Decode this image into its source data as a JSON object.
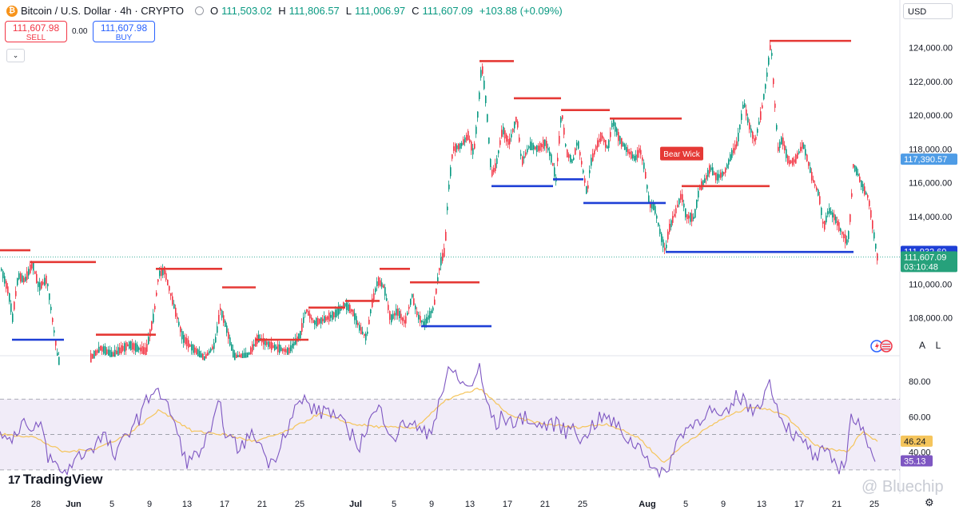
{
  "header": {
    "symbol": "Bitcoin / U.S. Dollar · 4h · CRYPTO",
    "o_label": "O",
    "o": "111,503.02",
    "h_label": "H",
    "h": "111,806.57",
    "l_label": "L",
    "l": "111,006.97",
    "c_label": "C",
    "c": "111,607.09",
    "change": "+103.88 (+0.09%)"
  },
  "trade": {
    "sell_price": "111,607.98",
    "sell_label": "SELL",
    "spread": "0.00",
    "buy_price": "111,607.98",
    "buy_label": "BUY"
  },
  "currency": "USD",
  "axis_buttons": {
    "auto": "A",
    "log": "L"
  },
  "branding": "TradingView",
  "watermark": "@ Bluechip",
  "colors": {
    "up": "#089981",
    "down": "#f23645",
    "resistance": "#e53935",
    "support": "#1e3fd6",
    "rsi": "#7e57c2",
    "rsi_ma": "#f5c55c",
    "rsi_band": "#ede7f6"
  },
  "chart_data": [
    {
      "type": "candlestick",
      "title": "Bitcoin / U.S. Dollar · 4h · CRYPTO",
      "x_ticks": [
        "28",
        "Jun",
        "5",
        "9",
        "13",
        "17",
        "21",
        "25",
        "Jul",
        "5",
        "9",
        "13",
        "17",
        "21",
        "25",
        "Aug",
        "5",
        "9",
        "13",
        "17",
        "21",
        "25"
      ],
      "y_ticks": [
        "108,000.00",
        "110,000.00",
        "112,000.00",
        "114,000.00",
        "116,000.00",
        "118,000.00",
        "120,000.00",
        "122,000.00",
        "124,000.00"
      ],
      "ylim": [
        105800,
        125400
      ],
      "path": [
        [
          0,
          111000
        ],
        [
          10,
          109500
        ],
        [
          15,
          108000
        ],
        [
          22,
          110500
        ],
        [
          30,
          110200
        ],
        [
          40,
          111200
        ],
        [
          48,
          109800
        ],
        [
          58,
          110300
        ],
        [
          64,
          108200
        ],
        [
          72,
          105500
        ],
        [
          90,
          104500
        ],
        [
          125,
          106200
        ],
        [
          140,
          105800
        ],
        [
          160,
          106400
        ],
        [
          182,
          106000
        ],
        [
          192,
          108200
        ],
        [
          198,
          110600
        ],
        [
          205,
          110800
        ],
        [
          218,
          108500
        ],
        [
          228,
          106800
        ],
        [
          240,
          106200
        ],
        [
          255,
          105600
        ],
        [
          268,
          106400
        ],
        [
          275,
          108500
        ],
        [
          282,
          107500
        ],
        [
          292,
          105700
        ],
        [
          310,
          105800
        ],
        [
          322,
          106800
        ],
        [
          340,
          106300
        ],
        [
          360,
          106000
        ],
        [
          375,
          107000
        ],
        [
          382,
          108500
        ],
        [
          392,
          107700
        ],
        [
          405,
          107900
        ],
        [
          418,
          108200
        ],
        [
          430,
          108800
        ],
        [
          440,
          108400
        ],
        [
          450,
          107300
        ],
        [
          458,
          106800
        ],
        [
          464,
          108700
        ],
        [
          472,
          110200
        ],
        [
          480,
          109800
        ],
        [
          488,
          107900
        ],
        [
          496,
          108400
        ],
        [
          506,
          107700
        ],
        [
          515,
          109300
        ],
        [
          522,
          108100
        ],
        [
          530,
          107600
        ],
        [
          542,
          108600
        ],
        [
          550,
          111200
        ],
        [
          556,
          112000
        ],
        [
          560,
          115300
        ],
        [
          566,
          118000
        ],
        [
          576,
          118200
        ],
        [
          585,
          118800
        ],
        [
          592,
          117700
        ],
        [
          598,
          120500
        ],
        [
          602,
          123100
        ],
        [
          608,
          120500
        ],
        [
          614,
          116500
        ],
        [
          620,
          117000
        ],
        [
          628,
          119200
        ],
        [
          636,
          118300
        ],
        [
          646,
          119900
        ],
        [
          652,
          117200
        ],
        [
          662,
          118200
        ],
        [
          672,
          118000
        ],
        [
          682,
          118400
        ],
        [
          690,
          117300
        ],
        [
          695,
          116200
        ],
        [
          702,
          120300
        ],
        [
          708,
          117800
        ],
        [
          716,
          117200
        ],
        [
          722,
          118500
        ],
        [
          730,
          116400
        ],
        [
          734,
          115300
        ],
        [
          738,
          117100
        ],
        [
          746,
          118200
        ],
        [
          752,
          118800
        ],
        [
          760,
          118000
        ],
        [
          766,
          119700
        ],
        [
          774,
          118600
        ],
        [
          784,
          117900
        ],
        [
          794,
          117400
        ],
        [
          800,
          118000
        ],
        [
          806,
          116800
        ],
        [
          812,
          114700
        ],
        [
          818,
          114600
        ],
        [
          826,
          112900
        ],
        [
          832,
          111900
        ],
        [
          836,
          113200
        ],
        [
          844,
          114200
        ],
        [
          852,
          115300
        ],
        [
          858,
          114000
        ],
        [
          868,
          113900
        ],
        [
          874,
          115600
        ],
        [
          882,
          116200
        ],
        [
          888,
          116900
        ],
        [
          896,
          116300
        ],
        [
          906,
          116600
        ],
        [
          914,
          117600
        ],
        [
          922,
          118400
        ],
        [
          930,
          120800
        ],
        [
          936,
          119500
        ],
        [
          944,
          118400
        ],
        [
          952,
          120200
        ],
        [
          958,
          122000
        ],
        [
          964,
          124400
        ],
        [
          968,
          121200
        ],
        [
          973,
          118000
        ],
        [
          978,
          118600
        ],
        [
          986,
          117200
        ],
        [
          994,
          117300
        ],
        [
          1004,
          118300
        ],
        [
          1010,
          117300
        ],
        [
          1016,
          116200
        ],
        [
          1024,
          115300
        ],
        [
          1030,
          113300
        ],
        [
          1036,
          114400
        ],
        [
          1044,
          113900
        ],
        [
          1052,
          113100
        ],
        [
          1060,
          112400
        ],
        [
          1064,
          114400
        ],
        [
          1067,
          117000
        ],
        [
          1072,
          116600
        ],
        [
          1078,
          115800
        ],
        [
          1086,
          115100
        ],
        [
          1092,
          113200
        ],
        [
          1097,
          111600
        ]
      ],
      "resistance_levels": [
        {
          "x": [
            0,
            38
          ],
          "y": 112000
        },
        {
          "x": [
            38,
            120
          ],
          "y": 111300
        },
        {
          "x": [
            120,
            195
          ],
          "y": 107000
        },
        {
          "x": [
            195,
            278
          ],
          "y": 110900
        },
        {
          "x": [
            278,
            320
          ],
          "y": 109800
        },
        {
          "x": [
            320,
            386
          ],
          "y": 106700
        },
        {
          "x": [
            386,
            432
          ],
          "y": 108600
        },
        {
          "x": [
            432,
            475
          ],
          "y": 109000
        },
        {
          "x": [
            475,
            513
          ],
          "y": 110900
        },
        {
          "x": [
            513,
            600
          ],
          "y": 110100
        },
        {
          "x": [
            600,
            643
          ],
          "y": 123200
        },
        {
          "x": [
            643,
            702
          ],
          "y": 121000
        },
        {
          "x": [
            702,
            763
          ],
          "y": 120300
        },
        {
          "x": [
            763,
            853
          ],
          "y": 119800
        },
        {
          "x": [
            853,
            963
          ],
          "y": 115800
        },
        {
          "x": [
            963,
            1065
          ],
          "y": 124400
        }
      ],
      "support_levels": [
        {
          "x": [
            15,
            80
          ],
          "y": 106700
        },
        {
          "x": [
            527,
            615
          ],
          "y": 107500
        },
        {
          "x": [
            615,
            692
          ],
          "y": 115800
        },
        {
          "x": [
            692,
            730
          ],
          "y": 116200
        },
        {
          "x": [
            730,
            833
          ],
          "y": 114800
        },
        {
          "x": [
            833,
            1068
          ],
          "y": 111900
        }
      ],
      "last_price": 111607.09,
      "price_labels": [
        {
          "value": 117390.57,
          "text": "117,390.57",
          "color": "#4e9ce6"
        },
        {
          "value": 111932.6,
          "text": "111,932.60",
          "color": "#1e3fd6"
        },
        {
          "value": 111607.09,
          "text": "111,607.09",
          "sub": "03:10:48",
          "color": "#26a17b"
        }
      ],
      "annotations": [
        {
          "text": "Bear Wick",
          "x": 853,
          "y": 117700
        }
      ]
    },
    {
      "type": "line",
      "title": "RSI",
      "ylim": [
        20,
        90
      ],
      "y_ticks": [
        "40.00",
        "60.00",
        "80.00"
      ],
      "band": [
        30,
        70
      ],
      "midline": 50,
      "rsi": [
        [
          0,
          55
        ],
        [
          10,
          45
        ],
        [
          20,
          52
        ],
        [
          30,
          58
        ],
        [
          40,
          48
        ],
        [
          50,
          58
        ],
        [
          60,
          38
        ],
        [
          70,
          32
        ],
        [
          80,
          28
        ],
        [
          92,
          35
        ],
        [
          105,
          40
        ],
        [
          118,
          44
        ],
        [
          130,
          50
        ],
        [
          145,
          36
        ],
        [
          155,
          48
        ],
        [
          165,
          55
        ],
        [
          175,
          60
        ],
        [
          185,
          70
        ],
        [
          195,
          78
        ],
        [
          205,
          68
        ],
        [
          215,
          62
        ],
        [
          225,
          45
        ],
        [
          235,
          34
        ],
        [
          245,
          38
        ],
        [
          255,
          44
        ],
        [
          265,
          52
        ],
        [
          275,
          68
        ],
        [
          283,
          50
        ],
        [
          292,
          45
        ],
        [
          300,
          42
        ],
        [
          310,
          48
        ],
        [
          320,
          50
        ],
        [
          330,
          40
        ],
        [
          340,
          32
        ],
        [
          350,
          45
        ],
        [
          360,
          55
        ],
        [
          370,
          65
        ],
        [
          380,
          70
        ],
        [
          390,
          65
        ],
        [
          400,
          62
        ],
        [
          410,
          65
        ],
        [
          420,
          60
        ],
        [
          430,
          55
        ],
        [
          440,
          50
        ],
        [
          450,
          44
        ],
        [
          460,
          55
        ],
        [
          468,
          62
        ],
        [
          476,
          64
        ],
        [
          484,
          56
        ],
        [
          494,
          48
        ],
        [
          504,
          55
        ],
        [
          514,
          58
        ],
        [
          524,
          52
        ],
        [
          534,
          50
        ],
        [
          544,
          58
        ],
        [
          550,
          72
        ],
        [
          556,
          76
        ],
        [
          560,
          84
        ],
        [
          568,
          86
        ],
        [
          576,
          80
        ],
        [
          584,
          76
        ],
        [
          592,
          80
        ],
        [
          600,
          87
        ],
        [
          606,
          72
        ],
        [
          612,
          66
        ],
        [
          620,
          54
        ],
        [
          628,
          60
        ],
        [
          638,
          58
        ],
        [
          648,
          56
        ],
        [
          658,
          62
        ],
        [
          668,
          54
        ],
        [
          678,
          56
        ],
        [
          688,
          54
        ],
        [
          698,
          58
        ],
        [
          708,
          50
        ],
        [
          718,
          58
        ],
        [
          728,
          44
        ],
        [
          738,
          54
        ],
        [
          748,
          58
        ],
        [
          758,
          60
        ],
        [
          768,
          56
        ],
        [
          778,
          52
        ],
        [
          788,
          46
        ],
        [
          798,
          44
        ],
        [
          808,
          40
        ],
        [
          818,
          30
        ],
        [
          826,
          26
        ],
        [
          834,
          30
        ],
        [
          844,
          42
        ],
        [
          854,
          52
        ],
        [
          864,
          55
        ],
        [
          874,
          58
        ],
        [
          884,
          64
        ],
        [
          894,
          62
        ],
        [
          904,
          58
        ],
        [
          914,
          64
        ],
        [
          922,
          72
        ],
        [
          932,
          70
        ],
        [
          940,
          62
        ],
        [
          950,
          68
        ],
        [
          958,
          74
        ],
        [
          964,
          80
        ],
        [
          972,
          66
        ],
        [
          980,
          58
        ],
        [
          990,
          52
        ],
        [
          1000,
          46
        ],
        [
          1010,
          44
        ],
        [
          1020,
          36
        ],
        [
          1030,
          40
        ],
        [
          1040,
          36
        ],
        [
          1050,
          32
        ],
        [
          1058,
          34
        ],
        [
          1064,
          60
        ],
        [
          1070,
          58
        ],
        [
          1080,
          50
        ],
        [
          1088,
          46
        ],
        [
          1096,
          35
        ]
      ],
      "rsi_ma": [
        [
          0,
          50
        ],
        [
          40,
          49
        ],
        [
          80,
          40
        ],
        [
          120,
          42
        ],
        [
          160,
          50
        ],
        [
          200,
          64
        ],
        [
          240,
          52
        ],
        [
          280,
          50
        ],
        [
          320,
          46
        ],
        [
          360,
          52
        ],
        [
          400,
          62
        ],
        [
          440,
          56
        ],
        [
          480,
          54
        ],
        [
          520,
          54
        ],
        [
          560,
          70
        ],
        [
          600,
          76
        ],
        [
          640,
          60
        ],
        [
          680,
          56
        ],
        [
          720,
          54
        ],
        [
          760,
          56
        ],
        [
          800,
          48
        ],
        [
          830,
          34
        ],
        [
          860,
          46
        ],
        [
          900,
          58
        ],
        [
          940,
          66
        ],
        [
          980,
          62
        ],
        [
          1020,
          44
        ],
        [
          1060,
          40
        ],
        [
          1080,
          52
        ],
        [
          1098,
          46
        ]
      ],
      "rsi_value": "35.13",
      "rsi_ma_value": "46.24"
    }
  ]
}
